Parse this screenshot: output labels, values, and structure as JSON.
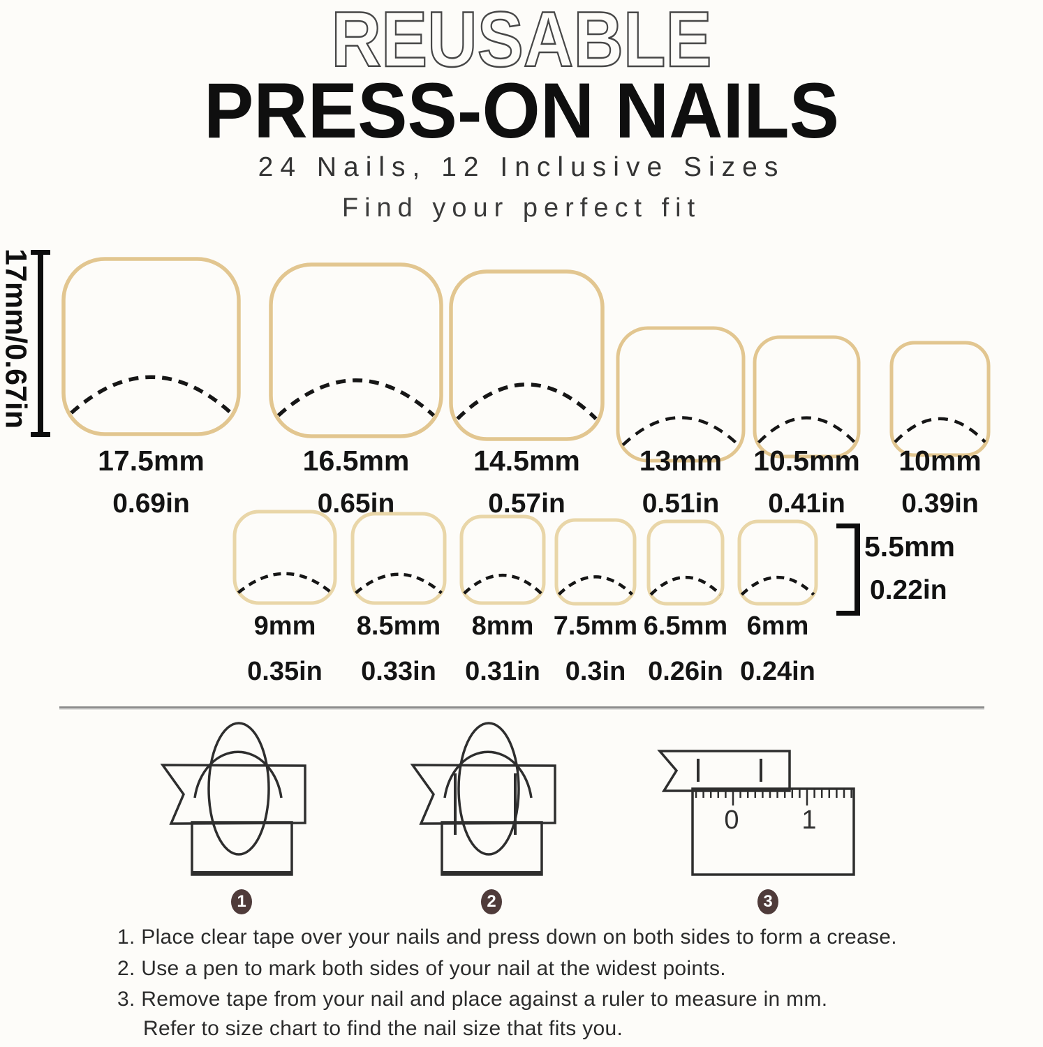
{
  "header": {
    "title_outline": "REUSABLE",
    "title_main": "PRESS-ON NAILS",
    "subtitle": "24 Nails, 12 Inclusive Sizes",
    "tagline": "Find your perfect fit"
  },
  "size_chart": {
    "length_bracket_label": "17mm/0.67in",
    "row1": [
      {
        "mm": "17.5mm",
        "inch": "0.69in"
      },
      {
        "mm": "16.5mm",
        "inch": "0.65in"
      },
      {
        "mm": "14.5mm",
        "inch": "0.57in"
      },
      {
        "mm": "13mm",
        "inch": "0.51in"
      },
      {
        "mm": "10.5mm",
        "inch": "0.41in"
      },
      {
        "mm": "10mm",
        "inch": "0.39in"
      }
    ],
    "row2": [
      {
        "mm": "9mm",
        "inch": "0.35in"
      },
      {
        "mm": "8.5mm",
        "inch": "0.33in"
      },
      {
        "mm": "8mm",
        "inch": "0.31in"
      },
      {
        "mm": "7.5mm",
        "inch": "0.3in"
      },
      {
        "mm": "6.5mm",
        "inch": "0.26in"
      },
      {
        "mm": "6mm",
        "inch": "0.24in"
      }
    ],
    "width_bracket": {
      "mm": "5.5mm",
      "inch": "0.22in"
    }
  },
  "steps": {
    "badges": [
      "1",
      "2",
      "3"
    ],
    "ruler_numbers": [
      "0",
      "1"
    ]
  },
  "instructions": {
    "line1": "1. Place clear tape over your nails and press down on both sides to form a crease.",
    "line2": "2. Use a pen to mark both sides of your nail at the widest points.",
    "line3": "3. Remove tape from your nail and place against a ruler to measure in mm.",
    "line4": "Refer to size chart to find the nail size that fits you."
  },
  "colors": {
    "nail_outline_row1": "#e2c690",
    "nail_outline_row2": "#e9d6a8",
    "dash": "#161616",
    "badge": "#4f3b3a",
    "diagram_stroke": "#2e2e2e"
  }
}
